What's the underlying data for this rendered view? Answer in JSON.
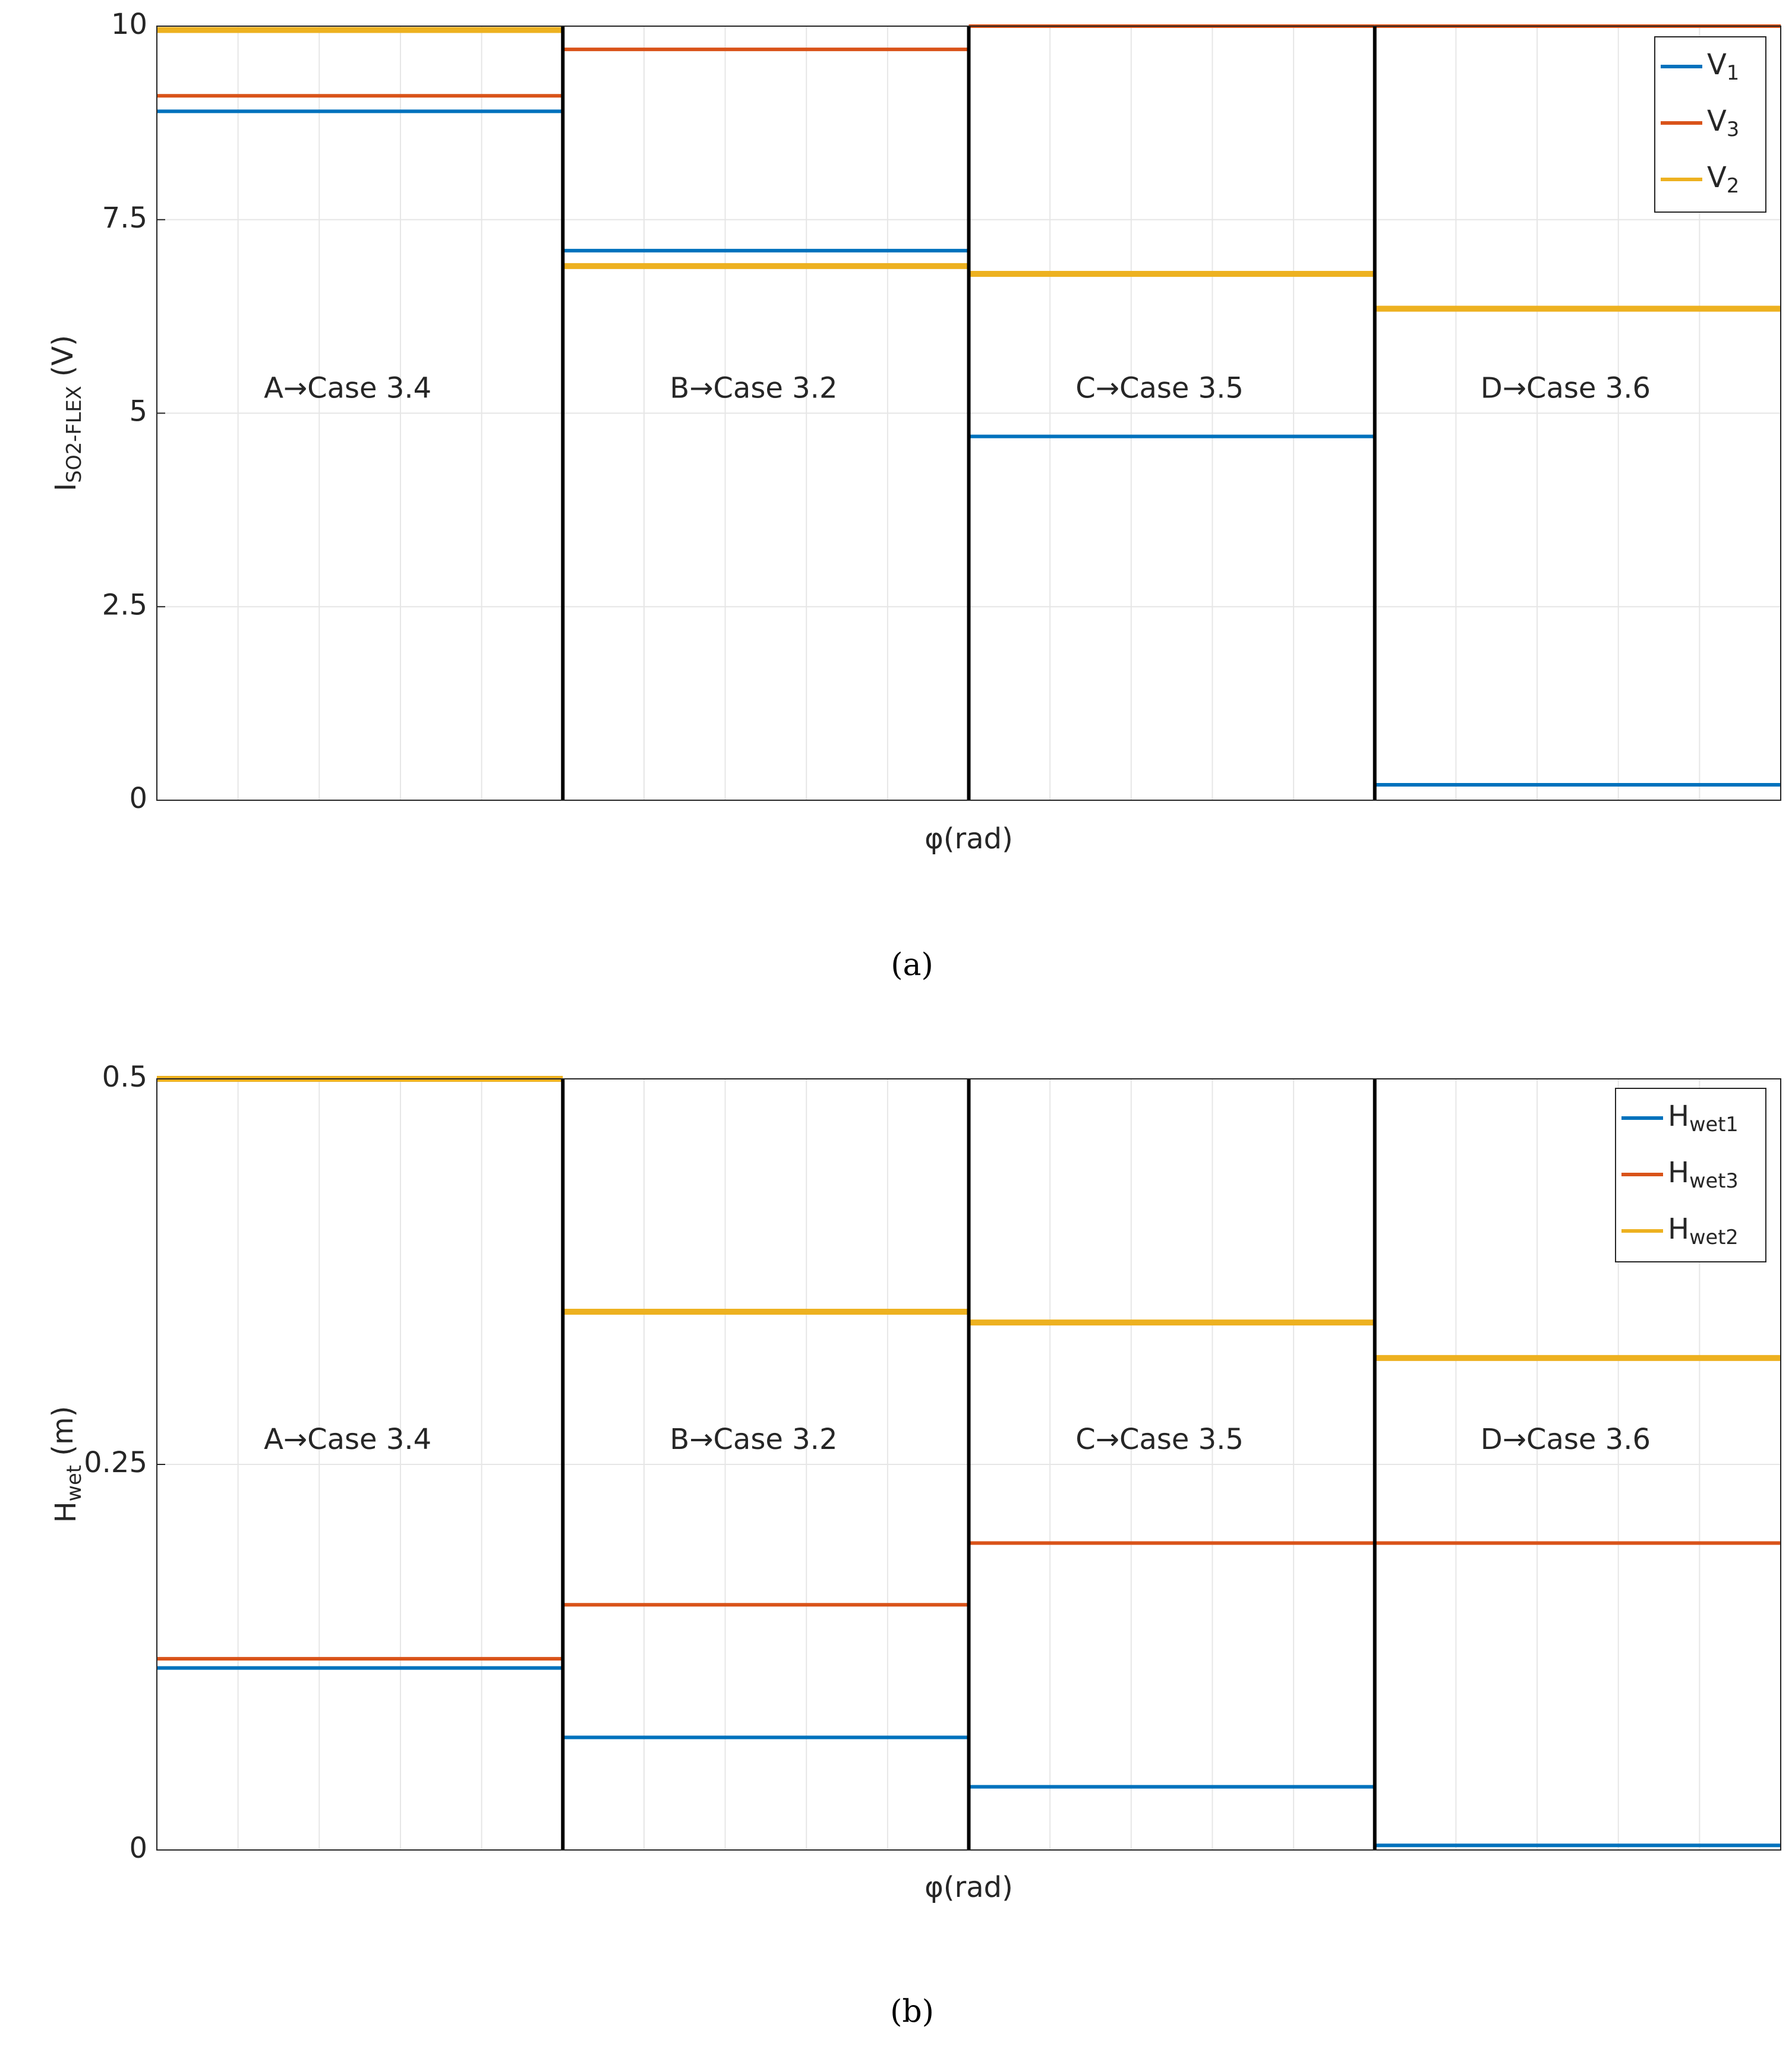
{
  "chart_data": [
    {
      "type": "line",
      "caption": "(a)",
      "ylabel": "ISO2-FLEX (V)",
      "xlabel": "φ(rad)",
      "categories": [
        "A→Case 3.4",
        "B→Case 3.2",
        "C→Case 3.5",
        "D→Case 3.6"
      ],
      "ylim": [
        0,
        10
      ],
      "yticks": [
        0,
        2.5,
        5,
        7.5,
        10
      ],
      "grid": true,
      "legend": "upper right",
      "series": [
        {
          "name": "V1",
          "color": "#0072bd",
          "values": [
            8.9,
            7.1,
            4.7,
            0.2
          ]
        },
        {
          "name": "V3",
          "color": "#d95319",
          "values": [
            9.1,
            9.7,
            10,
            10
          ]
        },
        {
          "name": "V2",
          "color": "#edb120",
          "values": [
            9.95,
            6.9,
            6.8,
            6.35
          ]
        }
      ]
    },
    {
      "type": "line",
      "caption": "(b)",
      "ylabel": "Hwet (m)",
      "xlabel": "φ(rad)",
      "categories": [
        "A→Case 3.4",
        "B→Case 3.2",
        "C→Case 3.5",
        "D→Case 3.6"
      ],
      "ylim": [
        0,
        0.5
      ],
      "yticks": [
        0,
        0.25,
        0.5
      ],
      "grid": true,
      "legend": "upper right",
      "series": [
        {
          "name": "Hwet1",
          "color": "#0072bd",
          "values": [
            0.118,
            0.073,
            0.041,
            0.003
          ]
        },
        {
          "name": "Hwet3",
          "color": "#d95319",
          "values": [
            0.124,
            0.159,
            0.199,
            0.199
          ]
        },
        {
          "name": "Hwet2",
          "color": "#edb120",
          "values": [
            0.5,
            0.349,
            0.342,
            0.319
          ]
        }
      ]
    }
  ]
}
